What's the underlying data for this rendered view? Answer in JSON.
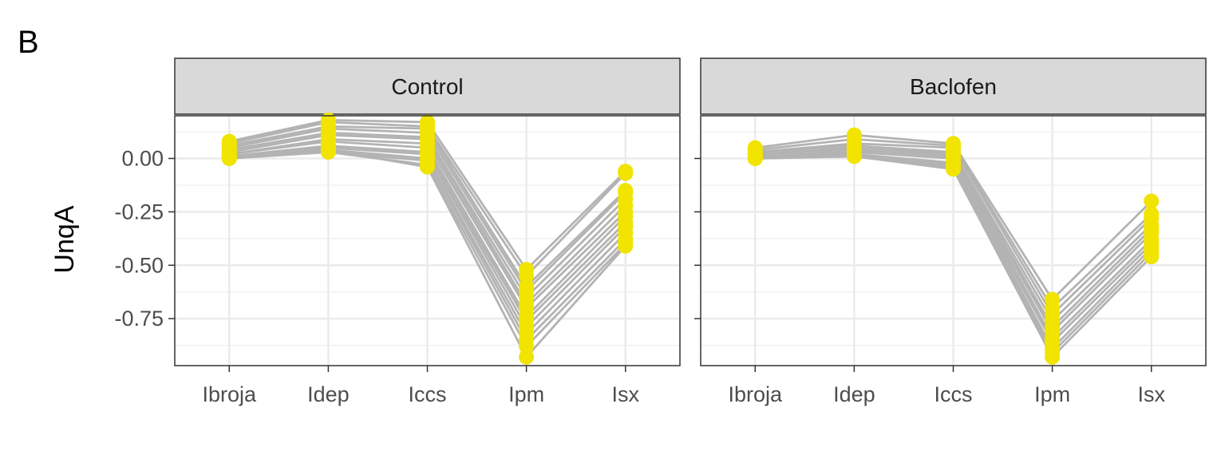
{
  "panel_tag": "B",
  "chart_data": {
    "type": "line",
    "ylabel": "UnqA",
    "ylim": [
      -0.97,
      0.2
    ],
    "y_ticks": [
      0.0,
      -0.25,
      -0.5,
      -0.75
    ],
    "y_tick_labels": [
      "0.00",
      "-0.25",
      "-0.50",
      "-0.75"
    ],
    "categories": [
      "Ibroja",
      "Idep",
      "Iccs",
      "Ipm",
      "Isx"
    ],
    "grid": true,
    "colors": {
      "line": "#b3b3b3",
      "point": "#f0e400",
      "strip": "#d9d9d9",
      "border": "#333333",
      "grid": "#ebebeb"
    },
    "facets": [
      {
        "name": "Control",
        "series": [
          {
            "values": [
              0.08,
              0.18,
              0.17,
              -0.52,
              -0.06
            ]
          },
          {
            "values": [
              0.07,
              0.17,
              0.15,
              -0.55,
              -0.07
            ]
          },
          {
            "values": [
              0.06,
              0.15,
              0.14,
              -0.6,
              -0.15
            ]
          },
          {
            "values": [
              0.05,
              0.14,
              0.12,
              -0.62,
              -0.16
            ]
          },
          {
            "values": [
              0.04,
              0.12,
              0.1,
              -0.65,
              -0.19
            ]
          },
          {
            "values": [
              0.03,
              0.11,
              0.09,
              -0.68,
              -0.22
            ]
          },
          {
            "values": [
              0.02,
              0.09,
              0.07,
              -0.7,
              -0.25
            ]
          },
          {
            "values": [
              0.02,
              0.08,
              0.05,
              -0.74,
              -0.27
            ]
          },
          {
            "values": [
              0.01,
              0.06,
              0.03,
              -0.76,
              -0.3
            ]
          },
          {
            "values": [
              0.01,
              0.05,
              0.02,
              -0.79,
              -0.32
            ]
          },
          {
            "values": [
              0.0,
              0.04,
              0.0,
              -0.82,
              -0.35
            ]
          },
          {
            "values": [
              0.0,
              0.03,
              -0.01,
              -0.85,
              -0.38
            ]
          },
          {
            "values": [
              0.0,
              0.03,
              -0.03,
              -0.88,
              -0.4
            ]
          },
          {
            "values": [
              0.01,
              0.04,
              -0.04,
              -0.93,
              -0.41
            ]
          }
        ]
      },
      {
        "name": "Baclofen",
        "series": [
          {
            "values": [
              0.05,
              0.11,
              0.07,
              -0.66,
              -0.2
            ]
          },
          {
            "values": [
              0.04,
              0.09,
              0.06,
              -0.7,
              -0.26
            ]
          },
          {
            "values": [
              0.03,
              0.07,
              0.05,
              -0.73,
              -0.28
            ]
          },
          {
            "values": [
              0.03,
              0.06,
              0.03,
              -0.76,
              -0.31
            ]
          },
          {
            "values": [
              0.02,
              0.05,
              0.02,
              -0.79,
              -0.33
            ]
          },
          {
            "values": [
              0.02,
              0.04,
              0.01,
              -0.81,
              -0.35
            ]
          },
          {
            "values": [
              0.01,
              0.03,
              0.0,
              -0.84,
              -0.38
            ]
          },
          {
            "values": [
              0.01,
              0.02,
              -0.02,
              -0.86,
              -0.4
            ]
          },
          {
            "values": [
              0.0,
              0.02,
              -0.03,
              -0.89,
              -0.42
            ]
          },
          {
            "values": [
              0.0,
              0.01,
              -0.04,
              -0.91,
              -0.44
            ]
          },
          {
            "values": [
              0.0,
              0.01,
              -0.05,
              -0.93,
              -0.46
            ]
          }
        ]
      }
    ]
  }
}
